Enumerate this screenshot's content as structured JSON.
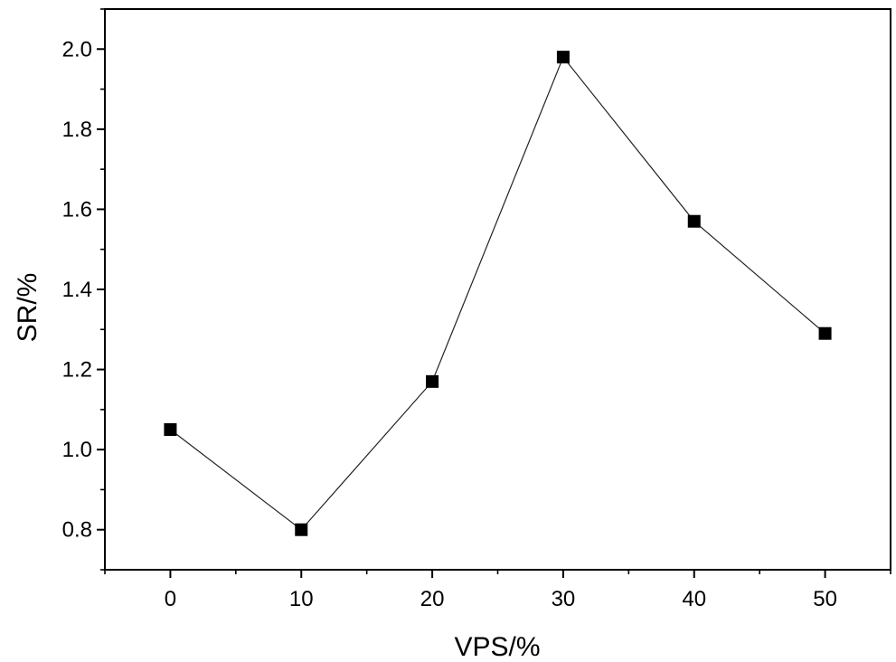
{
  "chart_data": {
    "type": "line",
    "title": "",
    "xlabel": "VPS/%",
    "ylabel": "SR/%",
    "x": [
      0,
      10,
      20,
      30,
      40,
      50
    ],
    "series": [
      {
        "name": "SR",
        "values": [
          1.05,
          0.8,
          1.17,
          1.98,
          1.57,
          1.29
        ]
      }
    ],
    "xlim": [
      -5,
      55
    ],
    "ylim": [
      0.7,
      2.1
    ],
    "xticks": [
      0,
      10,
      20,
      30,
      40,
      50
    ],
    "xtick_labels": [
      "0",
      "10",
      "20",
      "30",
      "40",
      "50"
    ],
    "yticks": [
      0.8,
      1.0,
      1.2,
      1.4,
      1.6,
      1.8,
      2.0
    ],
    "ytick_labels": [
      "0.8",
      "1.0",
      "1.2",
      "1.4",
      "1.6",
      "1.8",
      "2.0"
    ],
    "marker": "square",
    "grid": false,
    "colors": {
      "line": "#222222",
      "marker": "#000000",
      "axes": "#000000"
    }
  }
}
